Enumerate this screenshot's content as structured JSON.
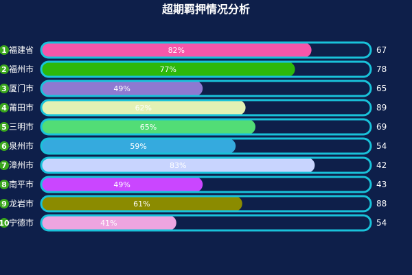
{
  "chart_data": {
    "type": "bar",
    "title": "超期羁押情况分析",
    "categories": [
      "福建省",
      "福州市",
      "厦门市",
      "莆田市",
      "三明市",
      "泉州市",
      "漳州市",
      "南平市",
      "龙岩市",
      "宁德市"
    ],
    "ranks": [
      "1",
      "2",
      "3",
      "4",
      "5",
      "6",
      "7",
      "8",
      "9",
      "10"
    ],
    "percent_labels": [
      "82%",
      "77%",
      "49%",
      "62%",
      "65%",
      "59%",
      "83%",
      "49%",
      "61%",
      "41%"
    ],
    "percent_values": [
      82,
      77,
      49,
      62,
      65,
      59,
      83,
      49,
      61,
      41
    ],
    "values": [
      67,
      78,
      65,
      89,
      69,
      54,
      42,
      43,
      88,
      54
    ],
    "xlim": [
      0,
      100
    ],
    "bar_colors": [
      "#f756a9",
      "#2db80b",
      "#8e79d1",
      "#e3f1b4",
      "#52dd76",
      "#35aade",
      "#c8d4fe",
      "#ca46ff",
      "#8b8b00",
      "#eea5e0"
    ],
    "track_border_color": "#19c2da",
    "rank_badge_color": "#3aa61c",
    "background": "#0e1f4a"
  }
}
